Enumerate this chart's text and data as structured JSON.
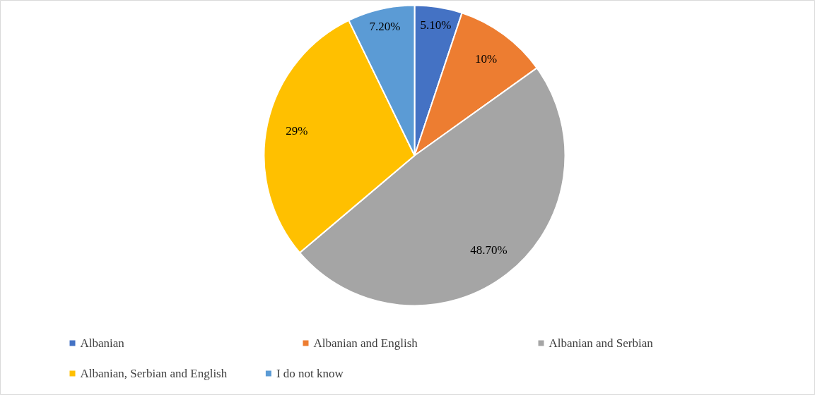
{
  "chart_data": {
    "type": "pie",
    "categories": [
      "Albanian",
      "Albanian and English",
      "Albanian and Serbian",
      "Albanian, Serbian and English",
      "I do not know"
    ],
    "values": [
      5.1,
      10,
      48.7,
      29,
      7.2
    ],
    "colors": [
      "#4472c4",
      "#ed7d31",
      "#a5a5a5",
      "#ffc000",
      "#5b9bd5"
    ],
    "value_labels": [
      "5.10%",
      "10%",
      "48.70%",
      "29%",
      "7.20%"
    ],
    "legend": "bottom"
  }
}
